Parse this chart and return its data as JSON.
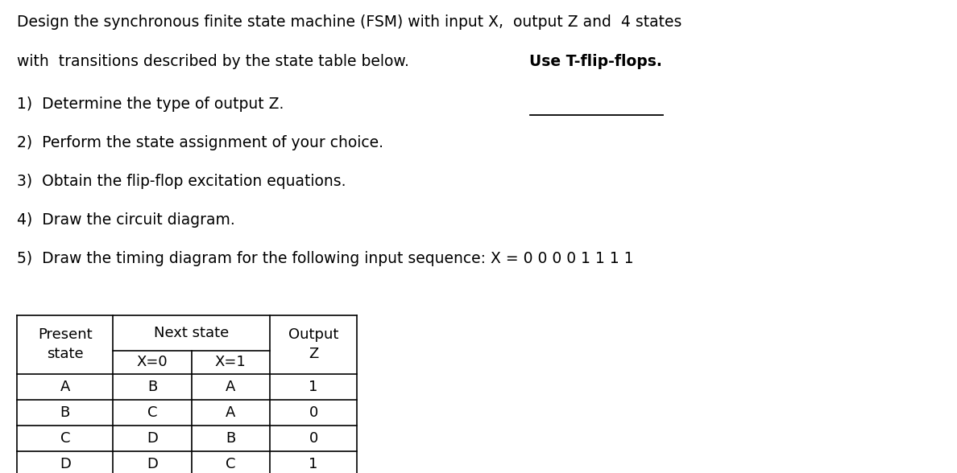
{
  "background_color": "#ffffff",
  "figsize": [
    11.88,
    5.88
  ],
  "dpi": 100,
  "line1": "Design the synchronous finite state machine (FSM) with input X,  output Z and  4 states",
  "line2_plain": "with  transitions described by the state table below. ",
  "line2_bold": "Use T-flip-flops.",
  "numbered_items": [
    "1)  Determine the type of output Z.",
    "2)  Perform the state assignment of your choice.",
    "3)  Obtain the flip-flop excitation equations.",
    "4)  Draw the circuit diagram.",
    "5)  Draw the timing diagram for the following input sequence: X = 0 0 0 0 1 1 1 1"
  ],
  "table": {
    "rows": [
      [
        "A",
        "B",
        "A",
        "1"
      ],
      [
        "B",
        "C",
        "A",
        "0"
      ],
      [
        "C",
        "D",
        "B",
        "0"
      ],
      [
        "D",
        "D",
        "C",
        "1"
      ]
    ],
    "font_size": 13
  },
  "text_color": "#000000",
  "font_size_title": 13.5,
  "font_size_body": 13.5
}
